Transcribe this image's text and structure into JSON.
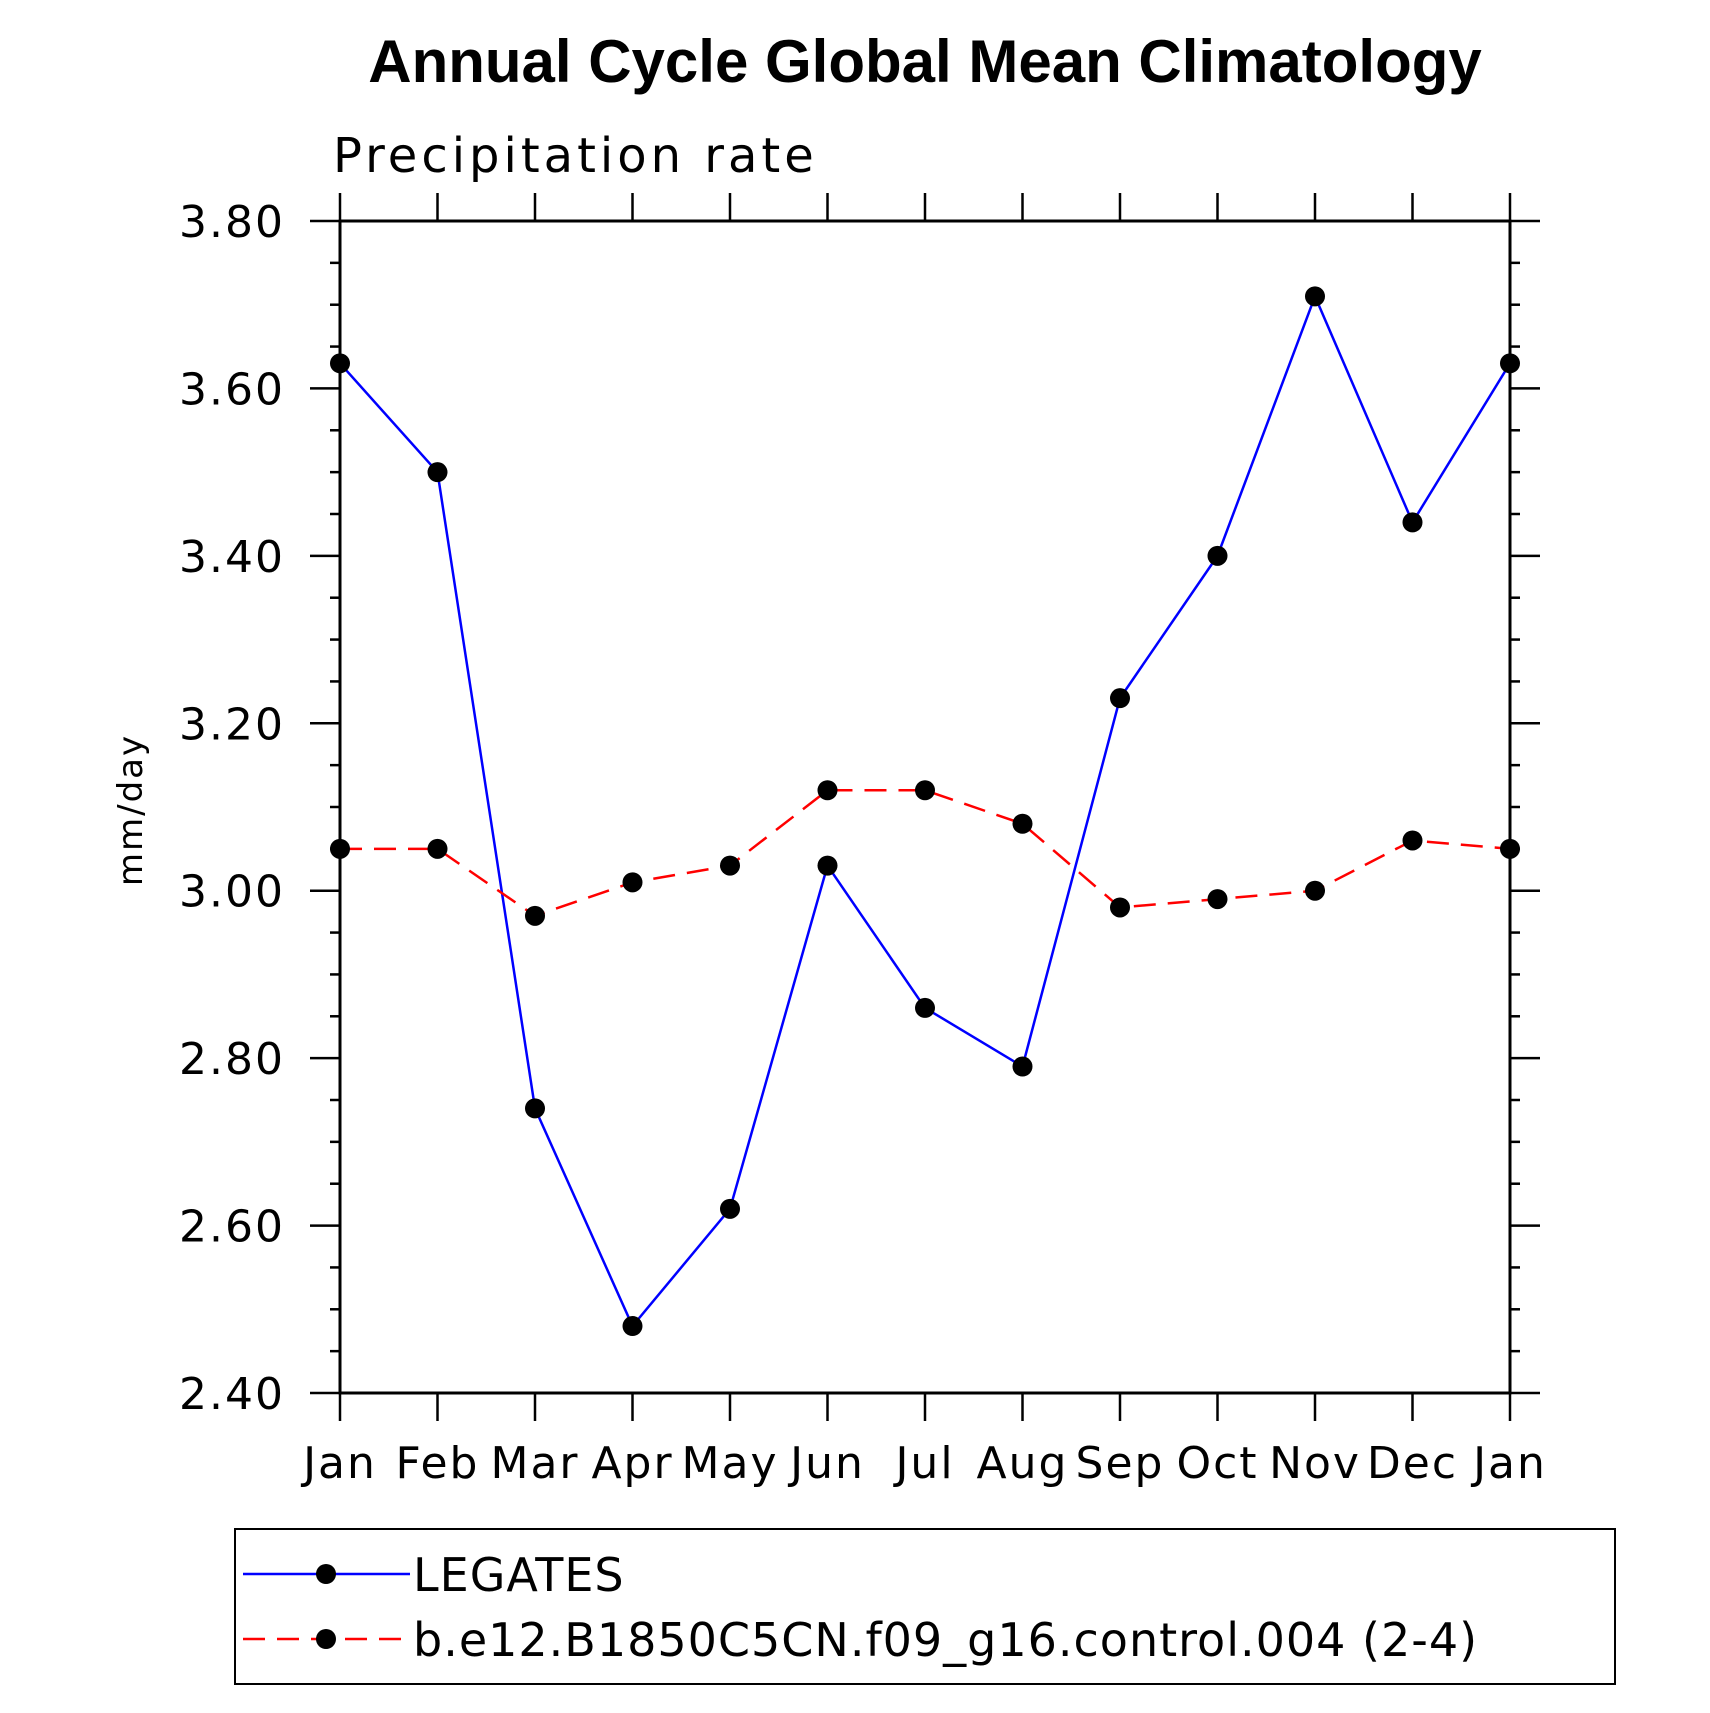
{
  "chart_data": {
    "type": "line",
    "title": "Annual Cycle Global Mean Climatology",
    "subtitle": "Precipitation rate",
    "xlabel": "",
    "ylabel": "mm/day",
    "categories": [
      "Jan",
      "Feb",
      "Mar",
      "Apr",
      "May",
      "Jun",
      "Jul",
      "Aug",
      "Sep",
      "Oct",
      "Nov",
      "Dec",
      "Jan"
    ],
    "ylim": [
      2.4,
      3.8
    ],
    "yticks": [
      "2.40",
      "2.60",
      "2.80",
      "3.00",
      "3.20",
      "3.40",
      "3.60",
      "3.80"
    ],
    "grid": false,
    "legend_position": "bottom",
    "series": [
      {
        "name": "LEGATES",
        "color": "#0000ff",
        "line_style": "solid",
        "marker": "filled-circle",
        "values": [
          3.63,
          3.5,
          2.74,
          2.48,
          2.62,
          3.03,
          2.86,
          2.79,
          3.23,
          3.4,
          3.71,
          3.44,
          3.63
        ]
      },
      {
        "name": "b.e12.B1850C5CN.f09_g16.control.004 (2-4)",
        "color": "#ff0000",
        "line_style": "dashed",
        "marker": "filled-circle",
        "values": [
          3.05,
          3.05,
          2.97,
          3.01,
          3.03,
          3.12,
          3.12,
          3.08,
          2.98,
          2.99,
          3.0,
          3.06,
          3.05
        ]
      }
    ]
  }
}
